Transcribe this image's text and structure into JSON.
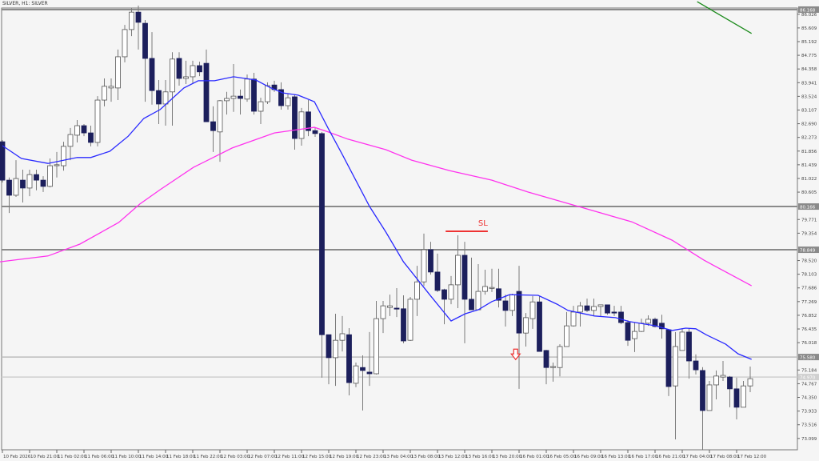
{
  "header": {
    "title": "SILVER, H1: SILVER"
  },
  "chart_data": {
    "type": "candlestick",
    "symbol": "SILVER",
    "timeframe": "H1",
    "colors": {
      "background": "#f5f5f5",
      "bull_body": "#ffffff",
      "bear_body": "#1c1f5c",
      "wick": "#7a7a7a",
      "ma_fast": "#2a2aff",
      "ma_slow": "#ff33ee",
      "trendline": "#1a8a1a",
      "sl": "#ee3333",
      "hline": "#8a8a8a"
    },
    "y_ticks": [
      "86.026",
      "85.609",
      "85.192",
      "84.775",
      "84.358",
      "83.941",
      "83.524",
      "83.107",
      "82.690",
      "82.273",
      "81.856",
      "81.439",
      "81.022",
      "80.605",
      "79.771",
      "79.354",
      "78.520",
      "78.103",
      "77.686",
      "77.269",
      "76.852",
      "76.435",
      "76.018",
      "75.184",
      "74.767",
      "74.350",
      "73.933",
      "73.516",
      "73.099"
    ],
    "x_ticks": [
      {
        "i": 0,
        "label": "10 Feb 2026"
      },
      {
        "i": 4,
        "label": "10 Feb 21:00"
      },
      {
        "i": 8,
        "label": "11 Feb 02:00"
      },
      {
        "i": 12,
        "label": "11 Feb 06:00"
      },
      {
        "i": 16,
        "label": "11 Feb 10:00"
      },
      {
        "i": 20,
        "label": "11 Feb 14:00"
      },
      {
        "i": 24,
        "label": "11 Feb 18:00"
      },
      {
        "i": 28,
        "label": "11 Feb 22:00"
      },
      {
        "i": 32,
        "label": "12 Feb 03:00"
      },
      {
        "i": 36,
        "label": "12 Feb 07:00"
      },
      {
        "i": 40,
        "label": "12 Feb 11:00"
      },
      {
        "i": 44,
        "label": "12 Feb 15:00"
      },
      {
        "i": 48,
        "label": "12 Feb 19:00"
      },
      {
        "i": 52,
        "label": "12 Feb 23:00"
      },
      {
        "i": 56,
        "label": "13 Feb 04:00"
      },
      {
        "i": 60,
        "label": "13 Feb 08:00"
      },
      {
        "i": 64,
        "label": "13 Feb 12:00"
      },
      {
        "i": 68,
        "label": "13 Feb 16:00"
      },
      {
        "i": 72,
        "label": "13 Feb 20:00"
      },
      {
        "i": 76,
        "label": "16 Feb 01:00"
      },
      {
        "i": 80,
        "label": "16 Feb 05:00"
      },
      {
        "i": 84,
        "label": "16 Feb 09:00"
      },
      {
        "i": 88,
        "label": "16 Feb 13:00"
      },
      {
        "i": 92,
        "label": "16 Feb 17:00"
      },
      {
        "i": 96,
        "label": "16 Feb 21:00"
      },
      {
        "i": 100,
        "label": "17 Feb 04:00"
      },
      {
        "i": 104,
        "label": "17 Feb 08:00"
      },
      {
        "i": 108,
        "label": "17 Feb 12:00"
      }
    ],
    "ohlc_fields": [
      "open",
      "high",
      "low",
      "close"
    ],
    "candles": [
      [
        82.14,
        82.19,
        80.9,
        80.97
      ],
      [
        80.97,
        81.05,
        79.97,
        80.51
      ],
      [
        80.51,
        81.58,
        80.46,
        81.02
      ],
      [
        80.97,
        81.29,
        80.29,
        80.73
      ],
      [
        80.73,
        81.29,
        80.48,
        81.14
      ],
      [
        81.14,
        81.29,
        80.66,
        80.97
      ],
      [
        80.97,
        81.09,
        80.61,
        80.78
      ],
      [
        80.78,
        81.63,
        80.75,
        81.41
      ],
      [
        81.41,
        81.83,
        81.05,
        81.44
      ],
      [
        81.41,
        82.14,
        81.26,
        82.0
      ],
      [
        82.0,
        82.56,
        81.58,
        82.36
      ],
      [
        82.34,
        82.8,
        82.12,
        82.63
      ],
      [
        82.63,
        82.68,
        82.31,
        82.41
      ],
      [
        82.41,
        82.63,
        82.0,
        82.12
      ],
      [
        82.12,
        83.53,
        82.0,
        83.41
      ],
      [
        83.41,
        84.07,
        83.22,
        83.83
      ],
      [
        83.78,
        84.07,
        83.36,
        83.83
      ],
      [
        83.78,
        84.95,
        83.41,
        84.73
      ],
      [
        84.73,
        85.7,
        84.56,
        85.56
      ],
      [
        85.56,
        86.22,
        85.36,
        86.09
      ],
      [
        86.09,
        86.29,
        84.95,
        85.78
      ],
      [
        85.75,
        85.85,
        83.36,
        84.68
      ],
      [
        84.68,
        85.48,
        83.27,
        83.7
      ],
      [
        83.7,
        84.02,
        82.68,
        83.29
      ],
      [
        83.29,
        84.02,
        82.63,
        83.66
      ],
      [
        83.66,
        84.87,
        82.63,
        84.66
      ],
      [
        84.68,
        84.87,
        83.85,
        84.07
      ],
      [
        84.07,
        84.61,
        83.9,
        84.12
      ],
      [
        84.12,
        84.61,
        83.9,
        84.46
      ],
      [
        84.46,
        84.58,
        84.14,
        84.27
      ],
      [
        84.53,
        84.95,
        82.75,
        82.75
      ],
      [
        82.75,
        83.22,
        81.83,
        82.48
      ],
      [
        82.44,
        83.41,
        81.53,
        83.39
      ],
      [
        83.39,
        83.66,
        82.97,
        83.46
      ],
      [
        83.46,
        84.51,
        83.05,
        83.53
      ],
      [
        83.53,
        83.73,
        82.97,
        83.46
      ],
      [
        83.44,
        84.19,
        83.36,
        84.05
      ],
      [
        84.05,
        84.24,
        82.97,
        83.07
      ],
      [
        83.07,
        83.48,
        82.68,
        83.36
      ],
      [
        83.36,
        83.95,
        83.29,
        83.85
      ],
      [
        83.87,
        84.0,
        83.66,
        83.73
      ],
      [
        83.73,
        83.95,
        83.12,
        83.24
      ],
      [
        83.24,
        83.61,
        83.12,
        83.48
      ],
      [
        83.51,
        83.58,
        81.9,
        82.24
      ],
      [
        82.24,
        83.17,
        82.02,
        83.05
      ],
      [
        83.05,
        83.41,
        82.31,
        82.48
      ],
      [
        82.48,
        82.58,
        82.29,
        82.39
      ],
      [
        82.39,
        82.44,
        74.95,
        76.26
      ],
      [
        76.26,
        76.26,
        74.75,
        75.56
      ],
      [
        75.56,
        76.9,
        74.7,
        76.09
      ],
      [
        76.09,
        76.83,
        75.75,
        76.29
      ],
      [
        76.26,
        76.46,
        74.41,
        74.8
      ],
      [
        74.78,
        75.41,
        74.66,
        75.31
      ],
      [
        75.26,
        75.63,
        73.95,
        75.17
      ],
      [
        75.12,
        76.34,
        74.7,
        75.07
      ],
      [
        75.07,
        77.29,
        75.05,
        76.75
      ],
      [
        76.75,
        77.29,
        76.31,
        77.14
      ],
      [
        77.09,
        77.48,
        76.83,
        77.14
      ],
      [
        77.07,
        77.68,
        76.8,
        77.05
      ],
      [
        77.05,
        77.46,
        76.0,
        76.07
      ],
      [
        76.09,
        77.41,
        76.07,
        77.34
      ],
      [
        77.34,
        78.36,
        76.83,
        77.87
      ],
      [
        77.87,
        79.34,
        77.75,
        78.85
      ],
      [
        78.85,
        79.09,
        78.09,
        78.17
      ],
      [
        78.17,
        78.73,
        77.56,
        77.61
      ],
      [
        77.63,
        77.66,
        76.58,
        77.34
      ],
      [
        77.34,
        78.05,
        77.19,
        77.78
      ],
      [
        77.78,
        79.29,
        77.07,
        78.68
      ],
      [
        78.68,
        79.09,
        76.0,
        77.34
      ],
      [
        77.34,
        78.61,
        77.02,
        77.02
      ],
      [
        77.02,
        78.41,
        77.02,
        77.58
      ],
      [
        77.58,
        78.24,
        77.48,
        77.73
      ],
      [
        77.68,
        78.27,
        77.56,
        77.7
      ],
      [
        77.66,
        78.27,
        77.09,
        77.31
      ],
      [
        77.29,
        77.48,
        76.51,
        77.0
      ],
      [
        77.0,
        77.51,
        76.83,
        77.48
      ],
      [
        77.58,
        78.36,
        74.61,
        76.31
      ],
      [
        76.31,
        76.92,
        75.9,
        76.78
      ],
      [
        76.75,
        77.44,
        76.44,
        77.26
      ],
      [
        77.26,
        77.44,
        75.75,
        75.75
      ],
      [
        75.78,
        75.8,
        74.75,
        75.26
      ],
      [
        75.26,
        75.41,
        74.83,
        75.29
      ],
      [
        75.26,
        75.97,
        74.99,
        75.9
      ],
      [
        75.9,
        76.95,
        75.9,
        76.53
      ],
      [
        76.53,
        77.14,
        76.51,
        76.95
      ],
      [
        76.95,
        77.26,
        76.51,
        77.14
      ],
      [
        77.14,
        77.36,
        76.95,
        77.0
      ],
      [
        77.0,
        77.36,
        76.83,
        77.12
      ],
      [
        77.12,
        77.17,
        76.83,
        77.17
      ],
      [
        77.17,
        77.17,
        76.87,
        76.92
      ],
      [
        76.95,
        77.14,
        76.83,
        76.92
      ],
      [
        76.95,
        77.14,
        76.58,
        76.63
      ],
      [
        76.63,
        76.7,
        75.92,
        76.09
      ],
      [
        76.14,
        76.63,
        75.73,
        76.36
      ],
      [
        76.36,
        76.75,
        76.34,
        76.61
      ],
      [
        76.61,
        76.85,
        76.53,
        76.73
      ],
      [
        76.73,
        76.78,
        76.48,
        76.51
      ],
      [
        76.61,
        76.87,
        76.14,
        76.44
      ],
      [
        76.41,
        76.41,
        74.39,
        74.68
      ],
      [
        74.7,
        76.34,
        73.07,
        75.9
      ],
      [
        75.78,
        76.46,
        75.78,
        76.34
      ],
      [
        76.34,
        76.46,
        74.92,
        75.46
      ],
      [
        75.46,
        75.66,
        75.05,
        75.19
      ],
      [
        75.17,
        75.27,
        72.75,
        73.95
      ],
      [
        73.95,
        74.85,
        73.95,
        74.73
      ],
      [
        74.73,
        75.17,
        74.29,
        75.0
      ],
      [
        74.97,
        75.46,
        74.85,
        75.02
      ],
      [
        74.97,
        75.0,
        74.05,
        74.61
      ],
      [
        74.61,
        74.95,
        73.68,
        74.05
      ],
      [
        74.05,
        74.85,
        74.05,
        74.7
      ],
      [
        74.7,
        75.29,
        74.51,
        74.92
      ]
    ],
    "ma_fast": [
      [
        0,
        82.02
      ],
      [
        2.8,
        81.63
      ],
      [
        6.7,
        81.48
      ],
      [
        11,
        81.66
      ],
      [
        13,
        81.66
      ],
      [
        15.8,
        81.85
      ],
      [
        18.5,
        82.31
      ],
      [
        20.8,
        82.85
      ],
      [
        23.2,
        83.12
      ],
      [
        26.7,
        83.78
      ],
      [
        28.8,
        84.0
      ],
      [
        31.2,
        84.0
      ],
      [
        34,
        84.12
      ],
      [
        37.3,
        84.02
      ],
      [
        39.3,
        83.8
      ],
      [
        41.2,
        83.63
      ],
      [
        43.5,
        83.56
      ],
      [
        45.9,
        83.36
      ],
      [
        47.9,
        82.56
      ],
      [
        50,
        81.75
      ],
      [
        54,
        80.17
      ],
      [
        56.4,
        79.39
      ],
      [
        59,
        78.48
      ],
      [
        63,
        77.44
      ],
      [
        66,
        76.68
      ],
      [
        68.1,
        76.9
      ],
      [
        70,
        77.02
      ],
      [
        72,
        77.27
      ],
      [
        74.6,
        77.48
      ],
      [
        78.8,
        77.46
      ],
      [
        81.6,
        77.19
      ],
      [
        83.2,
        77.0
      ],
      [
        87.1,
        76.83
      ],
      [
        90.2,
        76.78
      ],
      [
        92.2,
        76.66
      ],
      [
        96.1,
        76.53
      ],
      [
        98.5,
        76.39
      ],
      [
        100.5,
        76.46
      ],
      [
        102,
        76.44
      ],
      [
        103.5,
        76.26
      ],
      [
        106.4,
        75.97
      ],
      [
        108.2,
        75.68
      ],
      [
        110.2,
        75.51
      ]
    ],
    "ma_slow": [
      [
        -0.4,
        78.48
      ],
      [
        6.7,
        78.66
      ],
      [
        11.4,
        79.02
      ],
      [
        17.1,
        79.68
      ],
      [
        20.2,
        80.24
      ],
      [
        23.2,
        80.68
      ],
      [
        28.1,
        81.36
      ],
      [
        33.8,
        81.95
      ],
      [
        40,
        82.41
      ],
      [
        45.9,
        82.58
      ],
      [
        47.9,
        82.44
      ],
      [
        50.8,
        82.22
      ],
      [
        56.4,
        81.9
      ],
      [
        60.2,
        81.58
      ],
      [
        65.8,
        81.26
      ],
      [
        72,
        80.97
      ],
      [
        77.3,
        80.61
      ],
      [
        85.5,
        80.12
      ],
      [
        92.6,
        79.7
      ],
      [
        98.5,
        79.14
      ],
      [
        103.2,
        78.53
      ],
      [
        110.2,
        77.75
      ]
    ],
    "trendline": [
      [
        102.2,
        86.41
      ],
      [
        110.2,
        85.44
      ]
    ],
    "horizontal_levels": [
      {
        "price": "86.168",
        "strong": true
      },
      {
        "price": "80.166",
        "strong": true
      },
      {
        "price": "78.849",
        "strong": true
      },
      {
        "price": "75.580",
        "strong": false
      },
      {
        "price": "74.970",
        "strong": false,
        "faint": true
      }
    ],
    "stop_loss": {
      "label": "SL",
      "price": 79.41,
      "from_i": 65.2,
      "to_i": 71.4
    },
    "sell_arrow": {
      "i": 75.5,
      "price": 75.6,
      "direction": "down"
    }
  }
}
